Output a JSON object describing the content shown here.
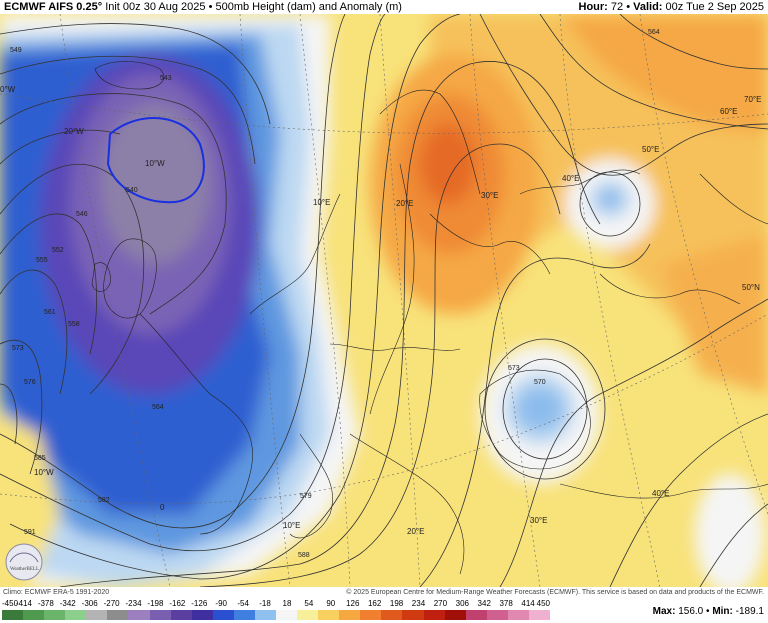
{
  "header": {
    "model": "ECMWF AIFS 0.25°",
    "init": "Init 00z 30 Aug 2025",
    "separator": "•",
    "field": "500mb Height (dam) and Anomaly (m)",
    "hour_label": "Hour:",
    "hour_value": "72",
    "valid_label": "Valid:",
    "valid_value": "00z Tue 2 Sep 2025"
  },
  "credits": {
    "climo": "Climo: ECMWF ERA-5 1991-2020",
    "copyright": "© 2025 European Centre for Medium-Range Weather Forecasts (ECMWF). This service is based on data and products of the ECMWF."
  },
  "legend": {
    "ticks": [
      "-450",
      "-414",
      "-378",
      "-342",
      "-306",
      "-270",
      "-234",
      "-198",
      "-162",
      "-126",
      "-90",
      "-54",
      "-18",
      "18",
      "54",
      "90",
      "126",
      "162",
      "198",
      "234",
      "270",
      "306",
      "342",
      "378",
      "414",
      "450"
    ],
    "colors": [
      "#3a7a3a",
      "#4f9a4f",
      "#6bb56b",
      "#8ccf8c",
      "#b3b3b3",
      "#8d8d8d",
      "#9b7fbf",
      "#7a5fb0",
      "#5a3fa0",
      "#3f2fa0",
      "#2a4fd0",
      "#3f7fe0",
      "#8fc0f0",
      "#f5f5f5",
      "#f8ef9a",
      "#f8d060",
      "#f5a840",
      "#f08030",
      "#e05a20",
      "#d03a10",
      "#c02010",
      "#a01008",
      "#c04070",
      "#d06090",
      "#e088b0",
      "#f0b0d0"
    ],
    "max_label": "Max:",
    "max_value": "156.0",
    "min_label": "Min:",
    "min_value": "-189.1"
  },
  "map": {
    "longitude_labels": [
      "0°W",
      "20°W",
      "10°W",
      "10°E",
      "20°E",
      "30°E",
      "40°E",
      "50°E",
      "60°E",
      "70°E",
      "50°N",
      "40°E",
      "30°E",
      "20°E",
      "10°E",
      "0",
      "10°W"
    ],
    "contour_labels": [
      "549",
      "543",
      "540",
      "546",
      "552",
      "555",
      "561",
      "558",
      "564",
      "573",
      "576",
      "579",
      "582",
      "585",
      "588",
      "591",
      "570",
      "573",
      "564"
    ],
    "logo_text": "WeatherBELL"
  }
}
